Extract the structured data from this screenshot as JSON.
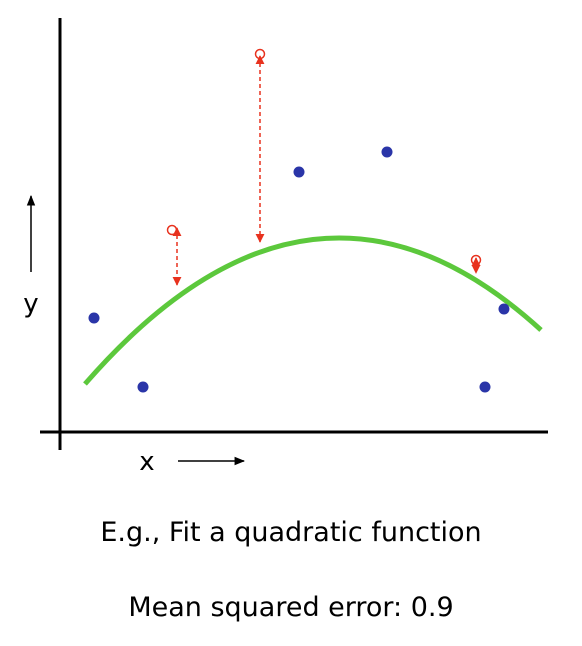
{
  "axes": {
    "y_label": "y",
    "x_label": "x"
  },
  "caption": "E.g., Fit a quadratic function",
  "error_text": "Mean squared error: 0.9"
}
